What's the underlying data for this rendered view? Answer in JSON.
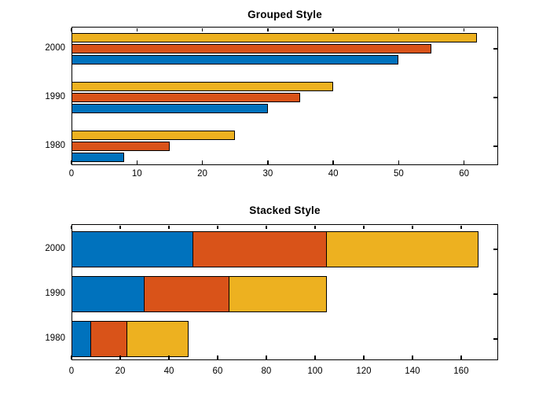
{
  "figure": {
    "background": "#ffffff",
    "axis_color": "#000000",
    "bar_edge_color": "#000000"
  },
  "palette": {
    "blue": "#0072BD",
    "orange": "#D95319",
    "yellow": "#EDB120"
  },
  "chart_data": [
    {
      "type": "bar",
      "orientation": "horizontal",
      "style": "grouped",
      "title": "Grouped Style",
      "categories": [
        "1980",
        "1990",
        "2000"
      ],
      "series": [
        {
          "name": "blue-series",
          "color": "#0072BD",
          "values": [
            8,
            30,
            50
          ]
        },
        {
          "name": "orange-series",
          "color": "#D95319",
          "values": [
            15,
            35,
            55
          ]
        },
        {
          "name": "yellow-series",
          "color": "#EDB120",
          "values": [
            25,
            40,
            62
          ]
        }
      ],
      "xlim": [
        0,
        65.2
      ],
      "xticks": [
        0,
        10,
        20,
        30,
        40,
        50,
        60
      ],
      "grid": false,
      "legend": null
    },
    {
      "type": "bar",
      "orientation": "horizontal",
      "style": "stacked",
      "title": "Stacked Style",
      "categories": [
        "1980",
        "1990",
        "2000"
      ],
      "series": [
        {
          "name": "blue-series",
          "color": "#0072BD",
          "values": [
            8,
            30,
            50
          ]
        },
        {
          "name": "orange-series",
          "color": "#D95319",
          "values": [
            15,
            35,
            55
          ]
        },
        {
          "name": "yellow-series",
          "color": "#EDB120",
          "values": [
            25,
            40,
            62
          ]
        }
      ],
      "xlim": [
        0,
        175.2
      ],
      "xticks": [
        0,
        20,
        40,
        60,
        80,
        100,
        120,
        140,
        160
      ],
      "grid": false,
      "legend": null
    }
  ]
}
